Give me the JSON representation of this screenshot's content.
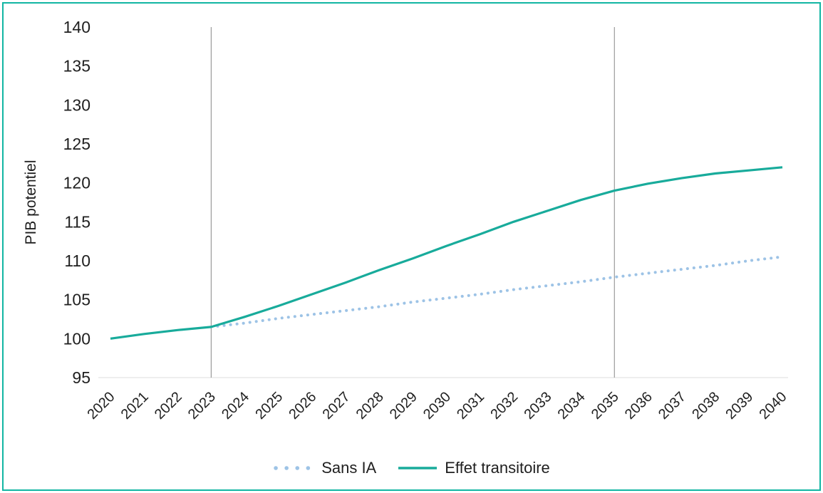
{
  "figure": {
    "border_color": "#12b5a3",
    "background": "#ffffff"
  },
  "chart_data": {
    "type": "line",
    "title": "",
    "ylabel": "PIB potentiel",
    "xlabel": "",
    "ylim": [
      95,
      140
    ],
    "ytick_step": 5,
    "grid": false,
    "legend_position": "bottom",
    "text_color": "#1f1f1f",
    "axis_line_color": "#dcdcdc",
    "x": [
      2020,
      2021,
      2022,
      2023,
      2024,
      2025,
      2026,
      2027,
      2028,
      2029,
      2030,
      2031,
      2032,
      2033,
      2034,
      2035,
      2036,
      2037,
      2038,
      2039,
      2040
    ],
    "reference_lines": [
      {
        "x": 2023,
        "color": "#9b9b9b"
      },
      {
        "x": 2035,
        "color": "#9b9b9b"
      }
    ],
    "series": [
      {
        "name": "Sans IA",
        "style": "dotted",
        "color": "#9dc3e6",
        "values": [
          null,
          null,
          null,
          101.5,
          102.0,
          102.6,
          103.1,
          103.6,
          104.1,
          104.7,
          105.2,
          105.7,
          106.3,
          106.8,
          107.3,
          107.9,
          108.4,
          108.9,
          109.4,
          110.0,
          110.5
        ]
      },
      {
        "name": "Effet transitoire",
        "style": "solid",
        "color": "#18ab9b",
        "values": [
          100.0,
          100.6,
          101.1,
          101.5,
          102.8,
          104.2,
          105.7,
          107.2,
          108.8,
          110.3,
          111.9,
          113.4,
          115.0,
          116.4,
          117.8,
          119.0,
          119.9,
          120.6,
          121.2,
          121.6,
          122.0
        ]
      }
    ]
  }
}
